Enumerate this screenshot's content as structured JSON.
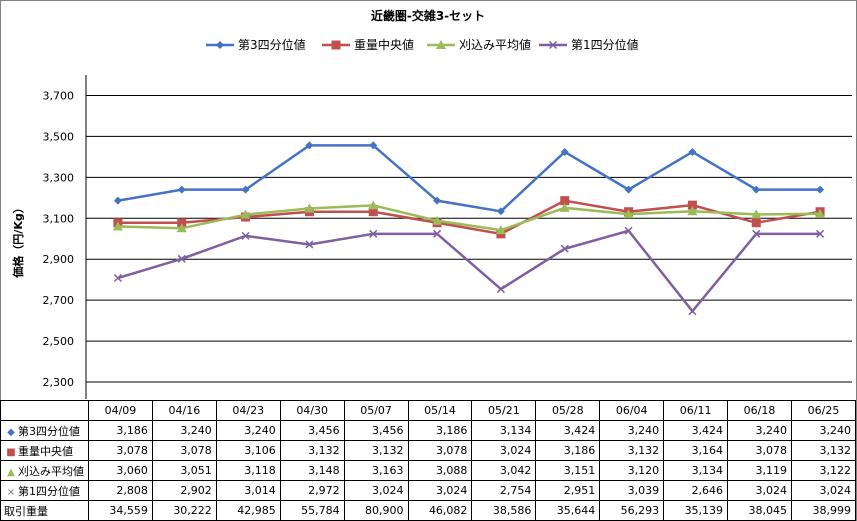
{
  "chart_data": {
    "type": "line",
    "title": "近畿圏-交雑3-セット",
    "ylabel": "価格（円/Kg）",
    "ylim": [
      2300,
      3800
    ],
    "yticks": [
      2300,
      2500,
      2700,
      2900,
      3100,
      3300,
      3500,
      3700
    ],
    "ytick_labels": [
      "2,300",
      "2,500",
      "2,700",
      "2,900",
      "3,100",
      "3,300",
      "3,500",
      "3,700"
    ],
    "grid": true,
    "legend_position": "top",
    "categories": [
      "04/09",
      "04/16",
      "04/23",
      "04/30",
      "05/07",
      "05/14",
      "05/21",
      "05/28",
      "06/04",
      "06/11",
      "06/18",
      "06/25"
    ],
    "series": [
      {
        "name": "第3四分位値",
        "color": "#4472C4",
        "marker": "diamond",
        "values": [
          3186,
          3240,
          3240,
          3456,
          3456,
          3186,
          3134,
          3424,
          3240,
          3424,
          3240,
          3240
        ],
        "labels": [
          "3,186",
          "3,240",
          "3,240",
          "3,456",
          "3,456",
          "3,186",
          "3,134",
          "3,424",
          "3,240",
          "3,424",
          "3,240",
          "3,240"
        ]
      },
      {
        "name": "重量中央値",
        "color": "#C0504D",
        "marker": "square",
        "values": [
          3078,
          3078,
          3106,
          3132,
          3132,
          3078,
          3024,
          3186,
          3132,
          3164,
          3078,
          3132
        ],
        "labels": [
          "3,078",
          "3,078",
          "3,106",
          "3,132",
          "3,132",
          "3,078",
          "3,024",
          "3,186",
          "3,132",
          "3,164",
          "3,078",
          "3,132"
        ]
      },
      {
        "name": "刈込み平均値",
        "color": "#9BBB59",
        "marker": "triangle",
        "values": [
          3060,
          3051,
          3118,
          3148,
          3163,
          3088,
          3042,
          3151,
          3120,
          3134,
          3119,
          3122
        ],
        "labels": [
          "3,060",
          "3,051",
          "3,118",
          "3,148",
          "3,163",
          "3,088",
          "3,042",
          "3,151",
          "3,120",
          "3,134",
          "3,119",
          "3,122"
        ]
      },
      {
        "name": "第1四分位値",
        "color": "#7F5F9F",
        "marker": "x",
        "values": [
          2808,
          2902,
          3014,
          2972,
          3024,
          3024,
          2754,
          2951,
          3039,
          2646,
          3024,
          3024
        ],
        "labels": [
          "2,808",
          "2,902",
          "3,014",
          "2,972",
          "3,024",
          "3,024",
          "2,754",
          "2,951",
          "3,039",
          "2,646",
          "3,024",
          "3,024"
        ]
      }
    ],
    "extra_row": {
      "name": "取引重量",
      "values": [
        34559,
        30222,
        42985,
        55784,
        80900,
        46082,
        38586,
        35644,
        56293,
        35139,
        38045,
        38999
      ],
      "labels": [
        "34,559",
        "30,222",
        "42,985",
        "55,784",
        "80,900",
        "46,082",
        "38,586",
        "35,644",
        "56,293",
        "35,139",
        "38,045",
        "38,999"
      ]
    }
  }
}
